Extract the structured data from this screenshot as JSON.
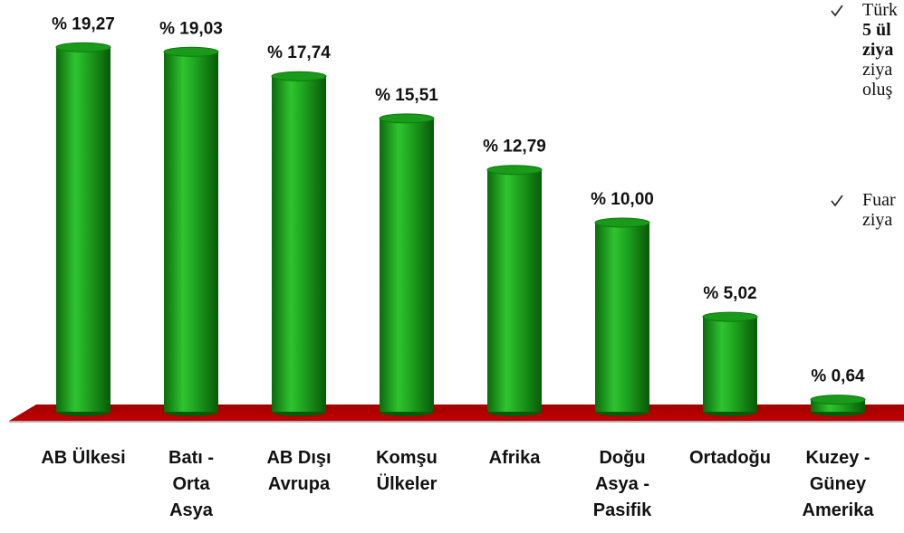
{
  "chart_data": {
    "type": "bar",
    "categories": [
      "AB Ülkesi",
      "Batı -\nOrta\nAsya",
      "AB Dışı\nAvrupa",
      "Komşu\nÜlkeler",
      "Afrika",
      "Doğu\nAsya -\nPasifik",
      "Ortadoğu",
      "Kuzey -\nGüney\nAmerika"
    ],
    "values": [
      19.27,
      19.03,
      17.74,
      15.51,
      12.79,
      10.0,
      5.02,
      0.64
    ],
    "value_labels": [
      "% 19,27",
      "% 19,03",
      "% 17,74",
      "% 15,51",
      "% 12,79",
      "% 10,00",
      "% 5,02",
      "% 0,64"
    ],
    "color": "#1a9a1a",
    "floor_color": "#c00000",
    "annotations": [
      {
        "lines": [
          "Türk",
          "5 ül",
          "ziya",
          "ziya",
          "oluş"
        ],
        "bold": [
          false,
          true,
          true,
          false,
          false
        ]
      },
      {
        "lines": [
          "Fuar",
          "ziya"
        ],
        "bold": [
          false,
          false
        ]
      }
    ]
  }
}
